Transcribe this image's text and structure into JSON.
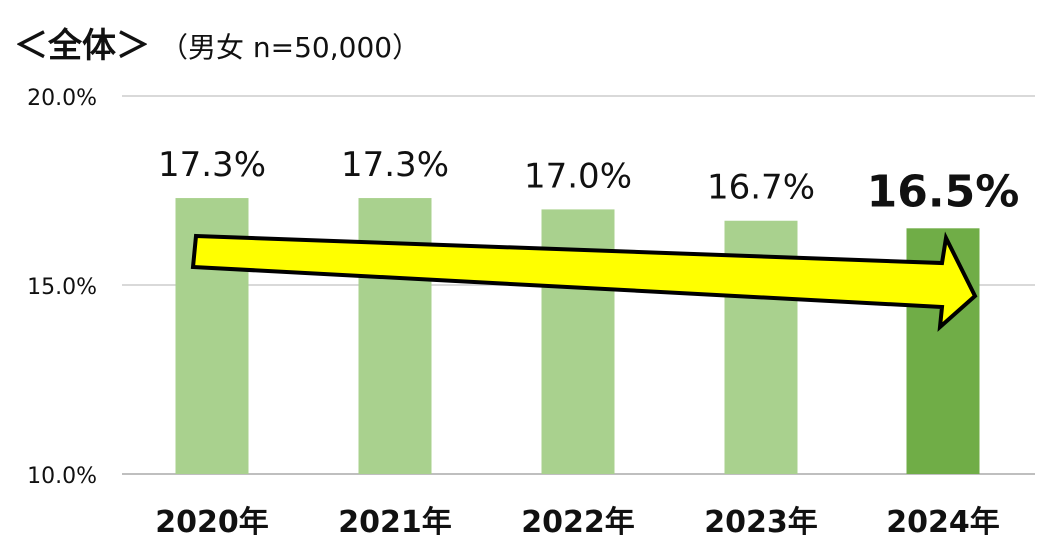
{
  "title": "＜全体＞",
  "subtitle": "（男女 n=50,000）",
  "chart_data": {
    "type": "bar",
    "title": "＜全体＞",
    "subtitle": "（男女 n=50,000）",
    "categories": [
      "2020年",
      "2021年",
      "2022年",
      "2023年",
      "2024年"
    ],
    "values": [
      17.3,
      17.3,
      17.0,
      16.7,
      16.5
    ],
    "value_labels": [
      "17.3%",
      "17.3%",
      "17.0%",
      "16.7%",
      "16.5%"
    ],
    "highlight_index": 4,
    "ylim": [
      10.0,
      20.0
    ],
    "yticks": [
      10.0,
      15.0,
      20.0
    ],
    "ytick_labels": [
      "10.0%",
      "15.0%",
      "20.0%"
    ],
    "xlabel": "",
    "ylabel": "",
    "grid": true,
    "annotation": "downward-trend-arrow",
    "colors": {
      "bar": "#a9d18e",
      "bar_highlight": "#70ad47",
      "grid": "#d9d9d9",
      "arrow_fill": "#ffff00",
      "arrow_stroke": "#000000",
      "text": "#111111"
    }
  }
}
